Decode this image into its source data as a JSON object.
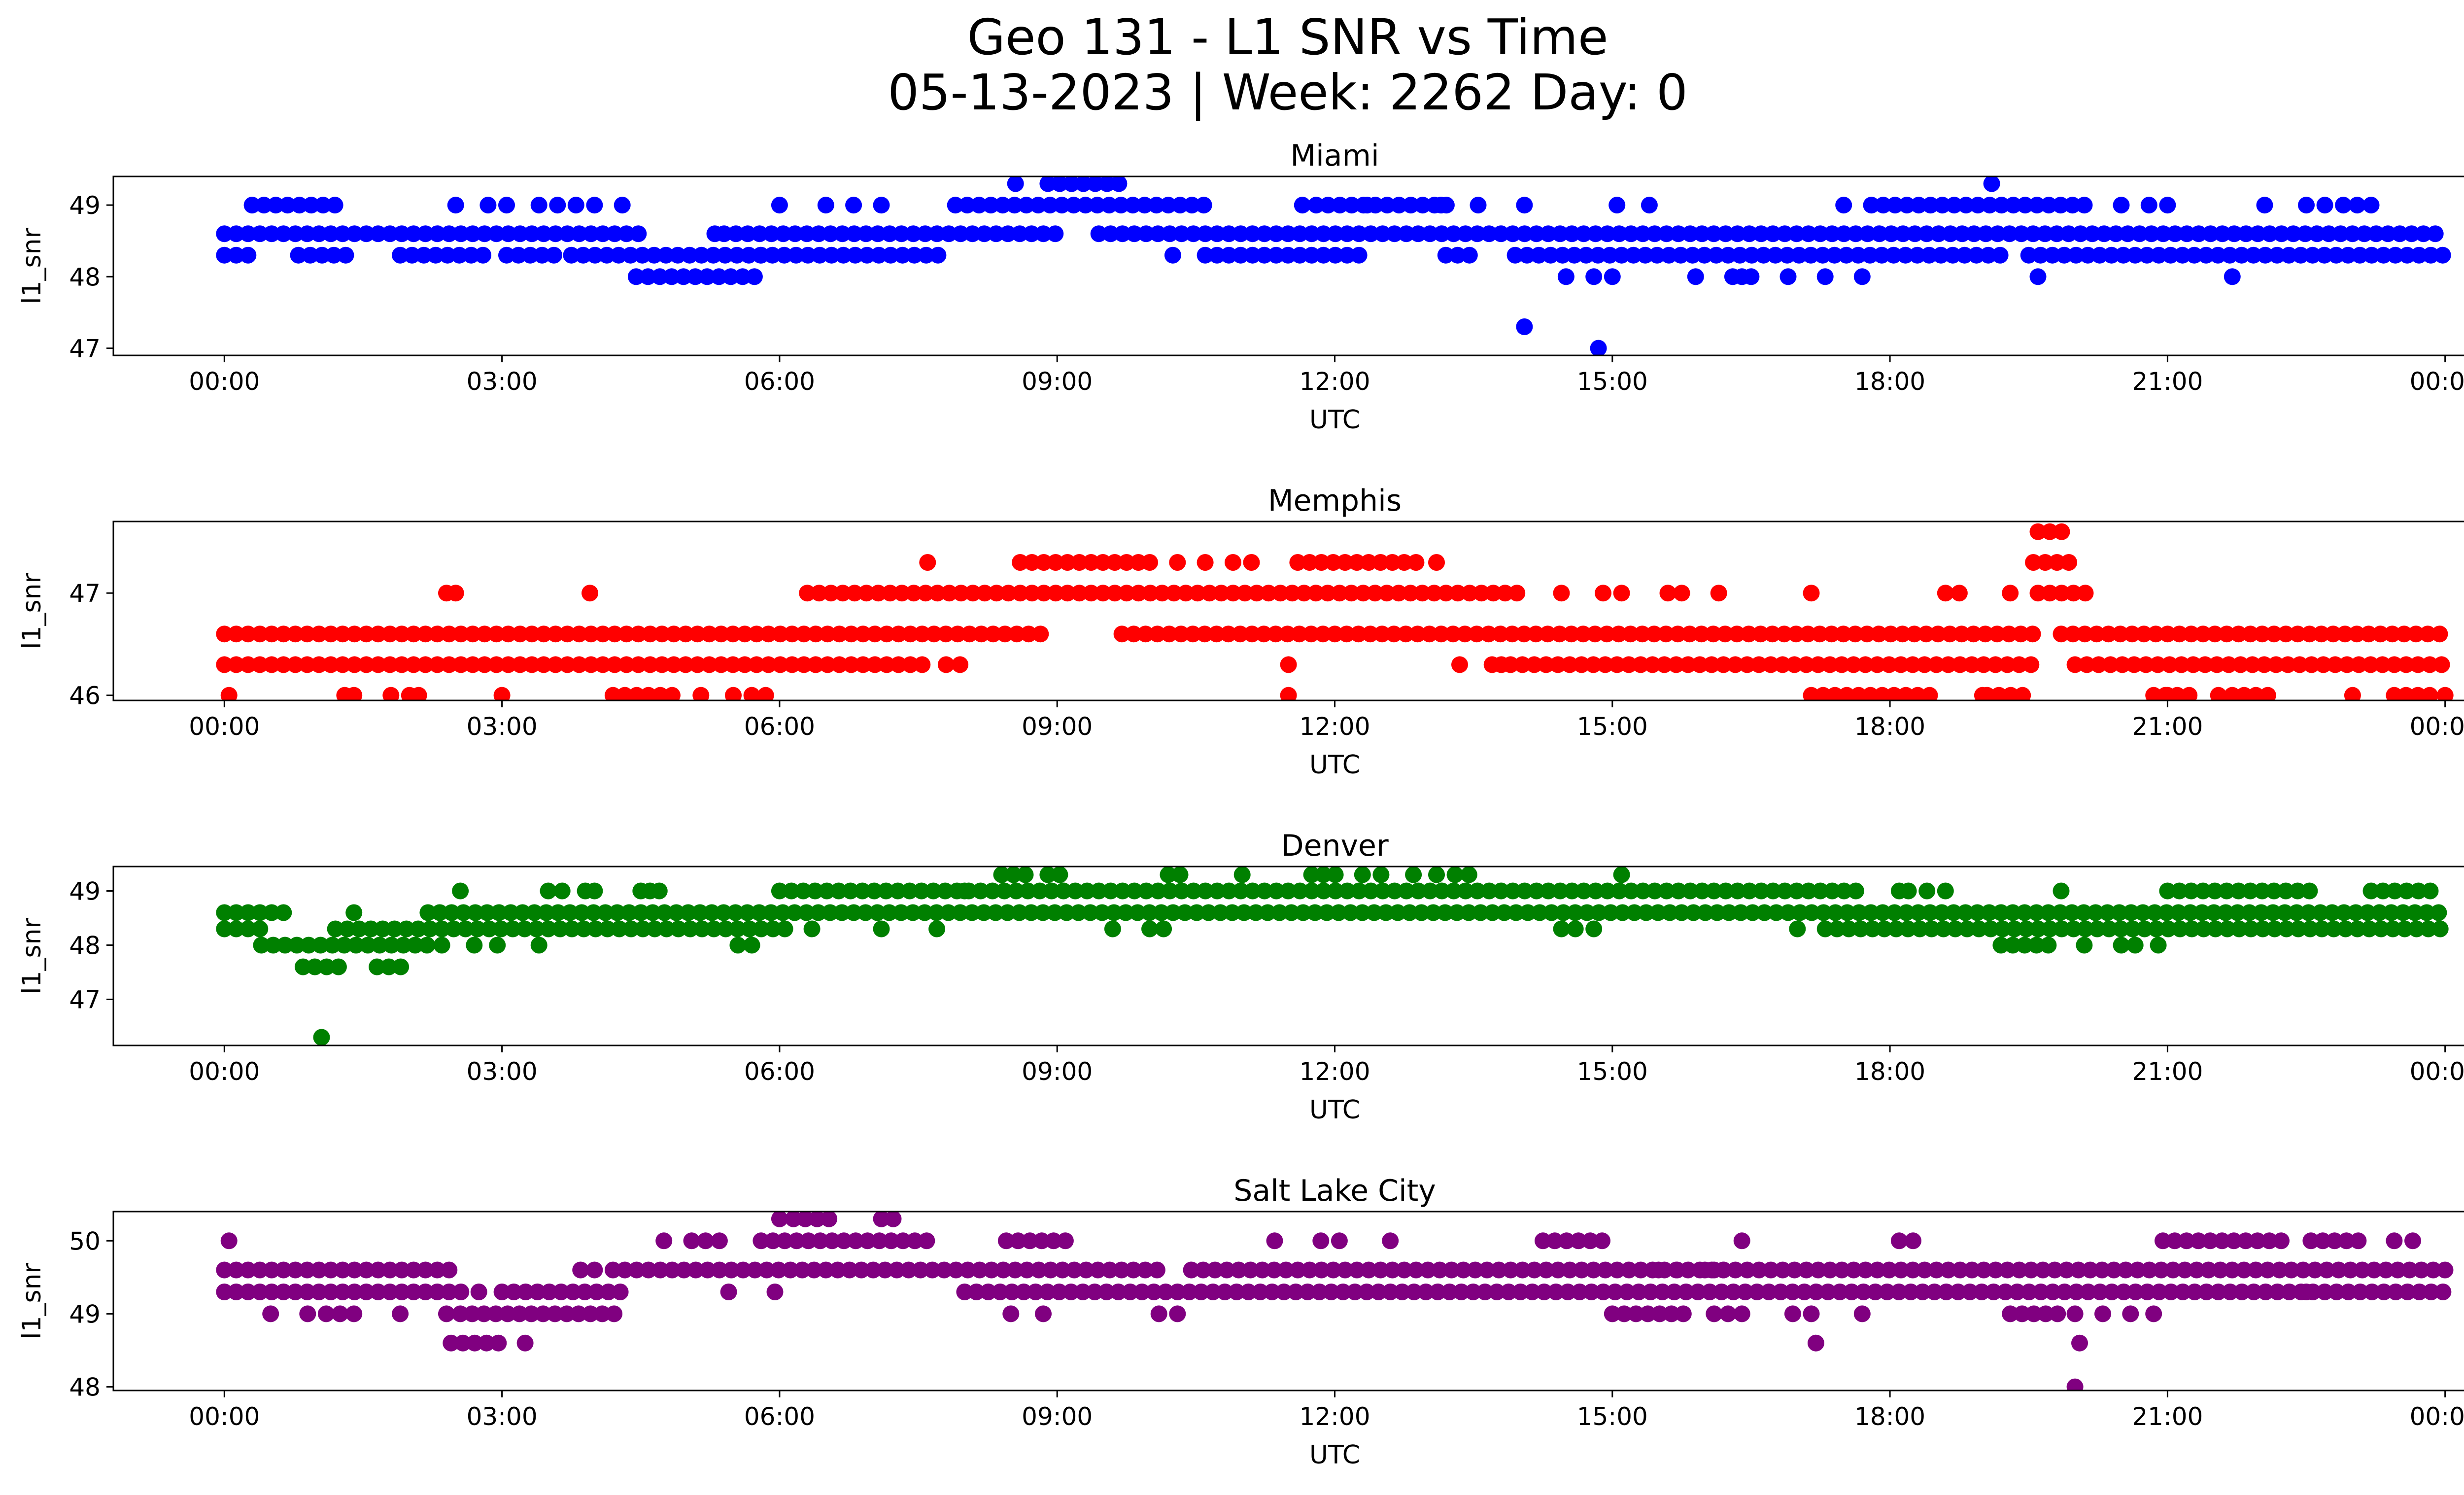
{
  "title_line1": "Geo 131 - L1 SNR vs Time",
  "title_line2": "05-13-2023 | Week: 2262 Day: 0",
  "chart_data": [
    {
      "type": "scatter",
      "title": "Miami",
      "xlabel": "UTC",
      "ylabel": "l1_snr",
      "color": "#0000ff",
      "x_unit": "hours",
      "xlim": [
        -1.2,
        25.2
      ],
      "ylim": [
        46.9,
        49.4
      ],
      "xticks": [
        "00:00",
        "03:00",
        "06:00",
        "09:00",
        "12:00",
        "15:00",
        "18:00",
        "21:00",
        "00:00"
      ],
      "yticks": [
        47,
        48,
        49
      ],
      "bands": [
        {
          "y": 48.6,
          "ranges": [
            [
              0,
              4.55
            ],
            [
              5.4,
              9.05
            ],
            [
              9.45,
              24
            ]
          ]
        },
        {
          "y": 48.3,
          "ranges": [
            [
              0,
              0.35
            ],
            [
              0.8,
              1.4
            ],
            [
              1.9,
              2.9
            ],
            [
              3.05,
              3.6
            ],
            [
              3.75,
              7.8
            ],
            [
              10.6,
              12.3
            ],
            [
              13.2,
              13.5
            ],
            [
              13.95,
              19.2
            ],
            [
              19.5,
              24
            ]
          ]
        },
        {
          "y": 49.0,
          "ranges": [
            [
              0.3,
              1.3
            ],
            [
              7.9,
              10.6
            ],
            [
              11.8,
              13.25
            ],
            [
              17.8,
              20.2
            ]
          ]
        },
        {
          "y": 48.0,
          "ranges": [
            [
              4.45,
              5.75
            ]
          ]
        },
        {
          "y": 49.3,
          "ranges": [
            [
              8.9,
              9.7
            ]
          ]
        }
      ],
      "points": [
        {
          "x": 2.5,
          "y": 49
        },
        {
          "x": 2.85,
          "y": 49
        },
        {
          "x": 3.05,
          "y": 49
        },
        {
          "x": 3.4,
          "y": 49
        },
        {
          "x": 3.6,
          "y": 49
        },
        {
          "x": 3.8,
          "y": 49
        },
        {
          "x": 4.0,
          "y": 49
        },
        {
          "x": 4.3,
          "y": 49
        },
        {
          "x": 5.3,
          "y": 48.6
        },
        {
          "x": 5.8,
          "y": 48.3
        },
        {
          "x": 6.0,
          "y": 49
        },
        {
          "x": 6.5,
          "y": 49
        },
        {
          "x": 6.8,
          "y": 49
        },
        {
          "x": 7.1,
          "y": 49
        },
        {
          "x": 8.55,
          "y": 49.3
        },
        {
          "x": 10.25,
          "y": 48.3
        },
        {
          "x": 11.65,
          "y": 49
        },
        {
          "x": 12.35,
          "y": 49
        },
        {
          "x": 13.15,
          "y": 49
        },
        {
          "x": 13.55,
          "y": 49
        },
        {
          "x": 14.05,
          "y": 49
        },
        {
          "x": 14.05,
          "y": 47.3
        },
        {
          "x": 14.5,
          "y": 48
        },
        {
          "x": 14.8,
          "y": 48
        },
        {
          "x": 14.85,
          "y": 47.0
        },
        {
          "x": 15.0,
          "y": 48
        },
        {
          "x": 15.05,
          "y": 49
        },
        {
          "x": 15.4,
          "y": 49
        },
        {
          "x": 15.9,
          "y": 48
        },
        {
          "x": 16.3,
          "y": 48
        },
        {
          "x": 16.4,
          "y": 48
        },
        {
          "x": 16.5,
          "y": 48
        },
        {
          "x": 16.9,
          "y": 48
        },
        {
          "x": 17.3,
          "y": 48
        },
        {
          "x": 17.5,
          "y": 49
        },
        {
          "x": 17.7,
          "y": 48
        },
        {
          "x": 19.1,
          "y": 49.3
        },
        {
          "x": 19.6,
          "y": 48
        },
        {
          "x": 20.5,
          "y": 49
        },
        {
          "x": 20.8,
          "y": 49
        },
        {
          "x": 21.0,
          "y": 49
        },
        {
          "x": 21.7,
          "y": 48
        },
        {
          "x": 22.05,
          "y": 49
        },
        {
          "x": 22.5,
          "y": 49
        },
        {
          "x": 22.7,
          "y": 49
        },
        {
          "x": 22.9,
          "y": 49
        },
        {
          "x": 23.05,
          "y": 49
        },
        {
          "x": 23.2,
          "y": 49
        }
      ]
    },
    {
      "type": "scatter",
      "title": "Memphis",
      "xlabel": "UTC",
      "ylabel": "l1_snr",
      "color": "#ff0000",
      "x_unit": "hours",
      "xlim": [
        -1.2,
        25.2
      ],
      "ylim": [
        45.95,
        47.7
      ],
      "xticks": [
        "00:00",
        "03:00",
        "06:00",
        "09:00",
        "12:00",
        "15:00",
        "18:00",
        "21:00",
        "00:00"
      ],
      "yticks": [
        46,
        47
      ],
      "bands": [
        {
          "y": 46.6,
          "ranges": [
            [
              0,
              8.9
            ],
            [
              9.7,
              19.6
            ],
            [
              19.85,
              24
            ]
          ]
        },
        {
          "y": 46.3,
          "ranges": [
            [
              0,
              7.6
            ],
            [
              13.9,
              19.55
            ],
            [
              20.0,
              24
            ]
          ]
        },
        {
          "y": 47.0,
          "ranges": [
            [
              6.3,
              14.0
            ],
            [
              19.6,
              20.2
            ]
          ]
        },
        {
          "y": 47.3,
          "ranges": [
            [
              8.6,
              9.9
            ],
            [
              11.6,
              12.9
            ],
            [
              19.55,
              19.95
            ]
          ]
        },
        {
          "y": 46.0,
          "ranges": [
            [
              4.2,
              4.9
            ],
            [
              17.15,
              18.5
            ],
            [
              19.05,
              19.5
            ],
            [
              20.85,
              21.3
            ],
            [
              21.7,
              22.1
            ],
            [
              23.45,
              23.9
            ]
          ]
        },
        {
          "y": 47.6,
          "ranges": [
            [
              19.6,
              19.95
            ]
          ]
        }
      ],
      "points": [
        {
          "x": 0.05,
          "y": 46
        },
        {
          "x": 1.3,
          "y": 46
        },
        {
          "x": 1.4,
          "y": 46
        },
        {
          "x": 1.8,
          "y": 46
        },
        {
          "x": 2.0,
          "y": 46
        },
        {
          "x": 2.1,
          "y": 46
        },
        {
          "x": 2.4,
          "y": 47
        },
        {
          "x": 2.5,
          "y": 47
        },
        {
          "x": 3.0,
          "y": 46
        },
        {
          "x": 3.95,
          "y": 47
        },
        {
          "x": 5.15,
          "y": 46
        },
        {
          "x": 5.5,
          "y": 46
        },
        {
          "x": 5.7,
          "y": 46
        },
        {
          "x": 5.85,
          "y": 46
        },
        {
          "x": 7.6,
          "y": 47.3
        },
        {
          "x": 7.8,
          "y": 46.3
        },
        {
          "x": 7.95,
          "y": 46.3
        },
        {
          "x": 10.0,
          "y": 47.3
        },
        {
          "x": 10.3,
          "y": 47.3
        },
        {
          "x": 10.6,
          "y": 47.3
        },
        {
          "x": 10.9,
          "y": 47.3
        },
        {
          "x": 11.1,
          "y": 47.3
        },
        {
          "x": 11.5,
          "y": 46.3
        },
        {
          "x": 11.5,
          "y": 46.0
        },
        {
          "x": 13.1,
          "y": 47.3
        },
        {
          "x": 13.35,
          "y": 46.3
        },
        {
          "x": 13.7,
          "y": 46.3
        },
        {
          "x": 13.8,
          "y": 46.3
        },
        {
          "x": 14.45,
          "y": 47
        },
        {
          "x": 14.9,
          "y": 47
        },
        {
          "x": 15.1,
          "y": 47
        },
        {
          "x": 15.6,
          "y": 47
        },
        {
          "x": 15.75,
          "y": 47
        },
        {
          "x": 16.15,
          "y": 47
        },
        {
          "x": 17.15,
          "y": 47
        },
        {
          "x": 18.6,
          "y": 47
        },
        {
          "x": 18.75,
          "y": 47
        },
        {
          "x": 19.0,
          "y": 46
        },
        {
          "x": 19.3,
          "y": 47
        },
        {
          "x": 21.0,
          "y": 46
        },
        {
          "x": 21.55,
          "y": 46
        },
        {
          "x": 23.0,
          "y": 46
        },
        {
          "x": 24.0,
          "y": 46
        }
      ]
    },
    {
      "type": "scatter",
      "title": "Denver",
      "xlabel": "UTC",
      "ylabel": "l1_snr",
      "color": "#008000",
      "x_unit": "hours",
      "xlim": [
        -1.2,
        25.2
      ],
      "ylim": [
        46.15,
        49.45
      ],
      "xticks": [
        "00:00",
        "03:00",
        "06:00",
        "09:00",
        "12:00",
        "15:00",
        "18:00",
        "21:00",
        "00:00"
      ],
      "yticks": [
        47,
        48,
        49
      ],
      "bands": [
        {
          "y": 48.6,
          "ranges": [
            [
              0,
              0.7
            ],
            [
              2.2,
              24
            ]
          ]
        },
        {
          "y": 48.3,
          "ranges": [
            [
              0,
              0.5
            ],
            [
              1.2,
              6.1
            ],
            [
              17.3,
              24
            ]
          ]
        },
        {
          "y": 49.0,
          "ranges": [
            [
              6.0,
              17.7
            ],
            [
              21.0,
              22.6
            ],
            [
              23.2,
              23.9
            ]
          ]
        },
        {
          "y": 48.0,
          "ranges": [
            [
              0.4,
              2.3
            ],
            [
              19.2,
              19.8
            ]
          ]
        },
        {
          "y": 47.6,
          "ranges": [
            [
              0.85,
              1.25
            ],
            [
              1.65,
              2.0
            ]
          ]
        },
        {
          "y": 49.3,
          "ranges": [
            [
              8.4,
              8.75
            ],
            [
              8.9,
              9.15
            ],
            [
              10.2,
              10.45
            ],
            [
              11.75,
              12.05
            ]
          ]
        }
      ],
      "points": [
        {
          "x": 1.05,
          "y": 46.3
        },
        {
          "x": 1.4,
          "y": 48.6
        },
        {
          "x": 2.55,
          "y": 49
        },
        {
          "x": 2.35,
          "y": 48
        },
        {
          "x": 2.7,
          "y": 48
        },
        {
          "x": 2.95,
          "y": 48
        },
        {
          "x": 3.4,
          "y": 48
        },
        {
          "x": 3.5,
          "y": 49
        },
        {
          "x": 3.65,
          "y": 49
        },
        {
          "x": 3.9,
          "y": 49
        },
        {
          "x": 4.0,
          "y": 49
        },
        {
          "x": 4.5,
          "y": 49
        },
        {
          "x": 4.6,
          "y": 49
        },
        {
          "x": 4.7,
          "y": 49
        },
        {
          "x": 5.55,
          "y": 48
        },
        {
          "x": 5.7,
          "y": 48
        },
        {
          "x": 6.35,
          "y": 48.3
        },
        {
          "x": 7.1,
          "y": 48.3
        },
        {
          "x": 7.7,
          "y": 48.3
        },
        {
          "x": 8.0,
          "y": 49
        },
        {
          "x": 9.6,
          "y": 48.3
        },
        {
          "x": 10.0,
          "y": 48.3
        },
        {
          "x": 10.15,
          "y": 48.3
        },
        {
          "x": 11.0,
          "y": 49.3
        },
        {
          "x": 12.3,
          "y": 49.3
        },
        {
          "x": 12.5,
          "y": 49.3
        },
        {
          "x": 12.85,
          "y": 49.3
        },
        {
          "x": 13.1,
          "y": 49.3
        },
        {
          "x": 13.3,
          "y": 49.3
        },
        {
          "x": 13.45,
          "y": 49.3
        },
        {
          "x": 14.45,
          "y": 48.3
        },
        {
          "x": 14.6,
          "y": 48.3
        },
        {
          "x": 14.8,
          "y": 48.3
        },
        {
          "x": 15.1,
          "y": 49.3
        },
        {
          "x": 17.0,
          "y": 48.3
        },
        {
          "x": 18.1,
          "y": 49
        },
        {
          "x": 18.2,
          "y": 49
        },
        {
          "x": 18.4,
          "y": 49
        },
        {
          "x": 18.6,
          "y": 49
        },
        {
          "x": 19.85,
          "y": 49
        },
        {
          "x": 20.1,
          "y": 48
        },
        {
          "x": 20.5,
          "y": 48
        },
        {
          "x": 20.65,
          "y": 48
        },
        {
          "x": 20.9,
          "y": 48
        }
      ]
    },
    {
      "type": "scatter",
      "title": "Salt Lake City",
      "xlabel": "UTC",
      "ylabel": "l1_snr",
      "color": "#800080",
      "x_unit": "hours",
      "xlim": [
        -1.2,
        25.2
      ],
      "ylim": [
        47.95,
        50.4
      ],
      "xticks": [
        "00:00",
        "03:00",
        "06:00",
        "09:00",
        "12:00",
        "15:00",
        "18:00",
        "21:00",
        "00:00"
      ],
      "yticks": [
        48,
        49,
        50
      ],
      "bands": [
        {
          "y": 49.6,
          "ranges": [
            [
              0,
              2.5
            ],
            [
              4.2,
              10.1
            ],
            [
              10.45,
              24
            ]
          ]
        },
        {
          "y": 49.3,
          "ranges": [
            [
              0,
              2.6
            ],
            [
              3.0,
              4.3
            ],
            [
              8.0,
              24
            ]
          ]
        },
        {
          "y": 49.0,
          "ranges": [
            [
              2.55,
              4.3
            ],
            [
              15.0,
              15.8
            ],
            [
              19.3,
              19.85
            ]
          ]
        },
        {
          "y": 50.0,
          "ranges": [
            [
              5.8,
              7.7
            ],
            [
              8.45,
              9.15
            ],
            [
              14.25,
              14.95
            ],
            [
              20.95,
              22.3
            ],
            [
              22.55,
              23.15
            ]
          ]
        },
        {
          "y": 48.6,
          "ranges": [
            [
              2.45,
              3.0
            ]
          ]
        },
        {
          "y": 50.3,
          "ranges": [
            [
              6.15,
              6.6
            ],
            [
              7.1,
              7.35
            ]
          ]
        }
      ],
      "points": [
        {
          "x": 0.05,
          "y": 50
        },
        {
          "x": 0.5,
          "y": 49
        },
        {
          "x": 0.9,
          "y": 49
        },
        {
          "x": 1.1,
          "y": 49
        },
        {
          "x": 1.25,
          "y": 49
        },
        {
          "x": 1.4,
          "y": 49
        },
        {
          "x": 1.9,
          "y": 49
        },
        {
          "x": 2.4,
          "y": 49
        },
        {
          "x": 2.75,
          "y": 49.3
        },
        {
          "x": 3.25,
          "y": 48.6
        },
        {
          "x": 3.85,
          "y": 49.6
        },
        {
          "x": 4.0,
          "y": 49.6
        },
        {
          "x": 4.75,
          "y": 50
        },
        {
          "x": 5.05,
          "y": 50
        },
        {
          "x": 5.2,
          "y": 50
        },
        {
          "x": 5.35,
          "y": 50
        },
        {
          "x": 5.45,
          "y": 49.3
        },
        {
          "x": 6.0,
          "y": 50.3
        },
        {
          "x": 5.95,
          "y": 49.3
        },
        {
          "x": 8.5,
          "y": 49
        },
        {
          "x": 8.85,
          "y": 49
        },
        {
          "x": 10.1,
          "y": 49
        },
        {
          "x": 10.3,
          "y": 49
        },
        {
          "x": 11.35,
          "y": 50
        },
        {
          "x": 11.85,
          "y": 50
        },
        {
          "x": 12.05,
          "y": 50
        },
        {
          "x": 12.6,
          "y": 50
        },
        {
          "x": 15.5,
          "y": 49.6
        },
        {
          "x": 15.7,
          "y": 49.6
        },
        {
          "x": 16.0,
          "y": 49.6
        },
        {
          "x": 16.1,
          "y": 49.6
        },
        {
          "x": 16.2,
          "y": 49.6
        },
        {
          "x": 16.4,
          "y": 50
        },
        {
          "x": 16.1,
          "y": 49
        },
        {
          "x": 16.25,
          "y": 49
        },
        {
          "x": 16.4,
          "y": 49
        },
        {
          "x": 16.95,
          "y": 49
        },
        {
          "x": 17.15,
          "y": 49
        },
        {
          "x": 17.2,
          "y": 48.6
        },
        {
          "x": 17.7,
          "y": 49
        },
        {
          "x": 18.1,
          "y": 50
        },
        {
          "x": 18.25,
          "y": 50
        },
        {
          "x": 20.0,
          "y": 48.0
        },
        {
          "x": 20.05,
          "y": 48.6
        },
        {
          "x": 20.0,
          "y": 49
        },
        {
          "x": 20.3,
          "y": 49
        },
        {
          "x": 20.6,
          "y": 49
        },
        {
          "x": 20.85,
          "y": 49
        },
        {
          "x": 22.5,
          "y": 49.3
        },
        {
          "x": 23.45,
          "y": 50
        },
        {
          "x": 23.65,
          "y": 50
        }
      ]
    }
  ]
}
